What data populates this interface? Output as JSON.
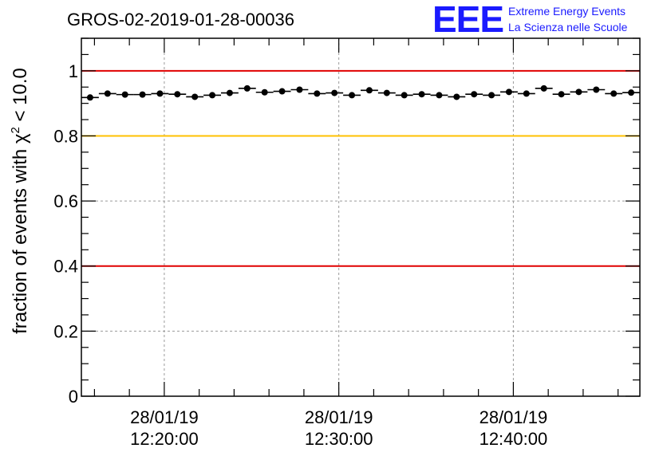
{
  "title": "GROS-02-2019-01-28-00036",
  "logo": {
    "mark": "EEE",
    "line1": "Extreme Energy Events",
    "line2": "La Scienza nelle Scuole"
  },
  "chart_data": {
    "type": "scatter",
    "ylabel": "fraction of events with χ² < 10.0",
    "ylabel_base": "fraction of events with χ",
    "ylabel_sup": "2",
    "ylabel_tail": " < 10.0",
    "ylim": [
      0,
      1.1
    ],
    "xlim": [
      "2019-01-28 12:15:15",
      "2019-01-28 12:47:15"
    ],
    "yticks": [
      {
        "value": 0,
        "label": "0"
      },
      {
        "value": 0.2,
        "label": "0.2"
      },
      {
        "value": 0.4,
        "label": "0.4"
      },
      {
        "value": 0.6,
        "label": "0.6"
      },
      {
        "value": 0.8,
        "label": "0.8"
      },
      {
        "value": 1,
        "label": "1"
      }
    ],
    "xticks": [
      {
        "time": "2019-01-28 12:20:00",
        "line1": "28/01/19",
        "line2": "12:20:00"
      },
      {
        "time": "2019-01-28 12:30:00",
        "line1": "28/01/19",
        "line2": "12:30:00"
      },
      {
        "time": "2019-01-28 12:40:00",
        "line1": "28/01/19",
        "line2": "12:40:00"
      }
    ],
    "reference_lines": [
      {
        "y": 1.0,
        "color": "#e00000"
      },
      {
        "y": 0.8,
        "color": "#ffc000"
      },
      {
        "y": 0.4,
        "color": "#e00000"
      }
    ],
    "grid": true,
    "marker_color": "#000000",
    "points": [
      {
        "x": "2019-01-28 12:15:45",
        "y": 0.918
      },
      {
        "x": "2019-01-28 12:16:45",
        "y": 0.93
      },
      {
        "x": "2019-01-28 12:17:45",
        "y": 0.927
      },
      {
        "x": "2019-01-28 12:18:45",
        "y": 0.927
      },
      {
        "x": "2019-01-28 12:19:45",
        "y": 0.93
      },
      {
        "x": "2019-01-28 12:20:45",
        "y": 0.928
      },
      {
        "x": "2019-01-28 12:21:45",
        "y": 0.92
      },
      {
        "x": "2019-01-28 12:22:45",
        "y": 0.925
      },
      {
        "x": "2019-01-28 12:23:45",
        "y": 0.932
      },
      {
        "x": "2019-01-28 12:24:45",
        "y": 0.946
      },
      {
        "x": "2019-01-28 12:25:45",
        "y": 0.934
      },
      {
        "x": "2019-01-28 12:26:45",
        "y": 0.937
      },
      {
        "x": "2019-01-28 12:27:45",
        "y": 0.942
      },
      {
        "x": "2019-01-28 12:28:45",
        "y": 0.93
      },
      {
        "x": "2019-01-28 12:29:45",
        "y": 0.932
      },
      {
        "x": "2019-01-28 12:30:45",
        "y": 0.925
      },
      {
        "x": "2019-01-28 12:31:45",
        "y": 0.94
      },
      {
        "x": "2019-01-28 12:32:45",
        "y": 0.932
      },
      {
        "x": "2019-01-28 12:33:45",
        "y": 0.925
      },
      {
        "x": "2019-01-28 12:34:45",
        "y": 0.928
      },
      {
        "x": "2019-01-28 12:35:45",
        "y": 0.925
      },
      {
        "x": "2019-01-28 12:36:45",
        "y": 0.92
      },
      {
        "x": "2019-01-28 12:37:45",
        "y": 0.928
      },
      {
        "x": "2019-01-28 12:38:45",
        "y": 0.925
      },
      {
        "x": "2019-01-28 12:39:45",
        "y": 0.935
      },
      {
        "x": "2019-01-28 12:40:45",
        "y": 0.93
      },
      {
        "x": "2019-01-28 12:41:45",
        "y": 0.946
      },
      {
        "x": "2019-01-28 12:42:45",
        "y": 0.928
      },
      {
        "x": "2019-01-28 12:43:45",
        "y": 0.935
      },
      {
        "x": "2019-01-28 12:44:45",
        "y": 0.942
      },
      {
        "x": "2019-01-28 12:45:45",
        "y": 0.93
      },
      {
        "x": "2019-01-28 12:46:45",
        "y": 0.933
      }
    ]
  }
}
